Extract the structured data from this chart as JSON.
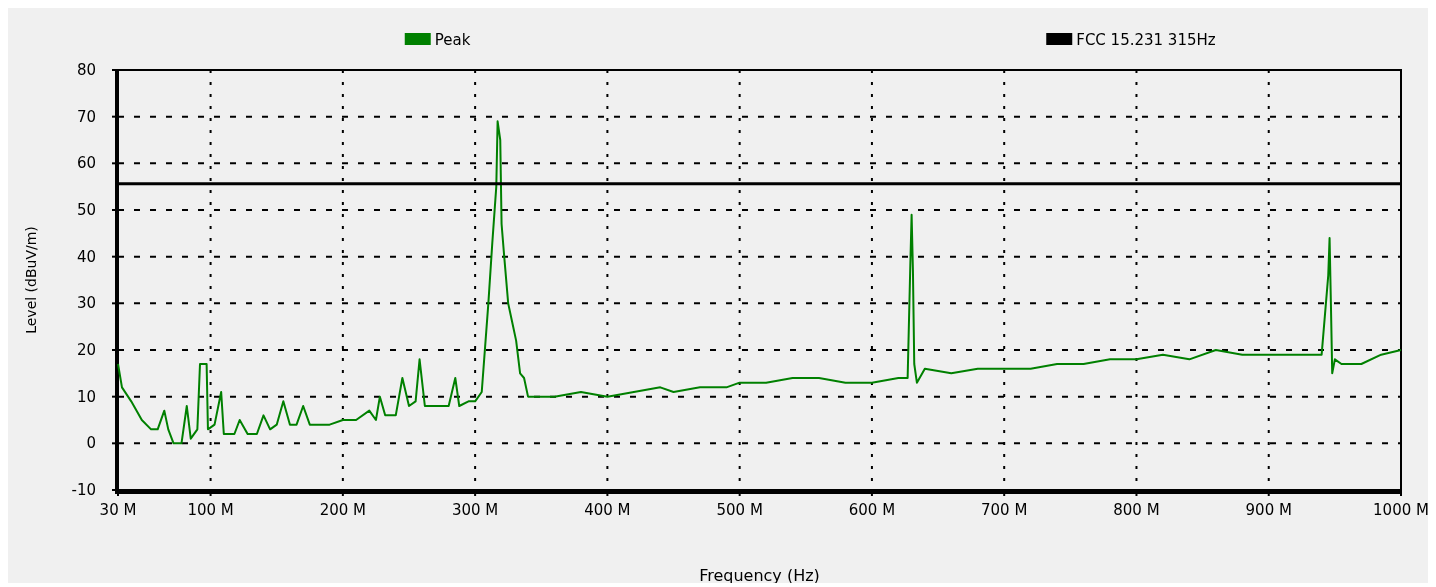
{
  "chart_data": {
    "type": "line",
    "xlabel": "Frequency (Hz)",
    "ylabel": "Level (dBuV/m)",
    "xlim": [
      30,
      1000
    ],
    "ylim": [
      -10,
      80
    ],
    "xticks": [
      {
        "value": 30,
        "label": "30 M"
      },
      {
        "value": 100,
        "label": "100 M"
      },
      {
        "value": 200,
        "label": "200 M"
      },
      {
        "value": 300,
        "label": "300 M"
      },
      {
        "value": 400,
        "label": "400 M"
      },
      {
        "value": 500,
        "label": "500 M"
      },
      {
        "value": 600,
        "label": "600 M"
      },
      {
        "value": 700,
        "label": "700 M"
      },
      {
        "value": 800,
        "label": "800 M"
      },
      {
        "value": 900,
        "label": "900 M"
      },
      {
        "value": 1000,
        "label": "1000 M"
      }
    ],
    "yticks": [
      -10,
      0,
      10,
      20,
      30,
      40,
      50,
      60,
      70,
      80
    ],
    "grid": true,
    "legend": "top",
    "line_style": "solid",
    "marker": "none",
    "series": [
      {
        "name": "Peak",
        "color": "#008000",
        "x": [
          30,
          33,
          40,
          48,
          55,
          60,
          65,
          68,
          72,
          78,
          82,
          85,
          90,
          92,
          97,
          98,
          103,
          108,
          110,
          118,
          122,
          128,
          135,
          140,
          145,
          150,
          155,
          160,
          165,
          170,
          175,
          190,
          200,
          210,
          220,
          225,
          228,
          232,
          240,
          245,
          250,
          255,
          258,
          262,
          270,
          280,
          285,
          288,
          295,
          300,
          305,
          310,
          313,
          316,
          317,
          319,
          320,
          322,
          325,
          328,
          331,
          334,
          337,
          340,
          350,
          360,
          380,
          400,
          420,
          440,
          450,
          470,
          490,
          500,
          520,
          540,
          560,
          580,
          600,
          620,
          627,
          629,
          630,
          631,
          632,
          634,
          640,
          660,
          680,
          700,
          720,
          740,
          760,
          780,
          800,
          820,
          840,
          860,
          880,
          900,
          920,
          940,
          945,
          946,
          947,
          948,
          950,
          955,
          970,
          985,
          1000
        ],
        "values": [
          17,
          12,
          9,
          5,
          3,
          3,
          7,
          3,
          0,
          0,
          8,
          1,
          3,
          17,
          17,
          3,
          4,
          11,
          2,
          2,
          5,
          2,
          2,
          6,
          3,
          4,
          9,
          4,
          4,
          8,
          4,
          4,
          5,
          5,
          7,
          5,
          10,
          6,
          6,
          14,
          8,
          9,
          18,
          8,
          8,
          8,
          14,
          8,
          9,
          9,
          11,
          30,
          43,
          55,
          69,
          65,
          47,
          40,
          30,
          26,
          22,
          15,
          14,
          10,
          10,
          10,
          11,
          10,
          11,
          12,
          11,
          12,
          12,
          13,
          13,
          14,
          14,
          13,
          13,
          14,
          14,
          38,
          49,
          37,
          17,
          13,
          16,
          15,
          16,
          16,
          16,
          17,
          17,
          18,
          18,
          19,
          18,
          20,
          19,
          19,
          19,
          19,
          36,
          44,
          30,
          15,
          18,
          17,
          17,
          19,
          20
        ]
      },
      {
        "name": "FCC 15.231 315Hz",
        "color": "#000000",
        "x": [
          30,
          1000
        ],
        "values": [
          55.6,
          55.6
        ]
      }
    ]
  }
}
